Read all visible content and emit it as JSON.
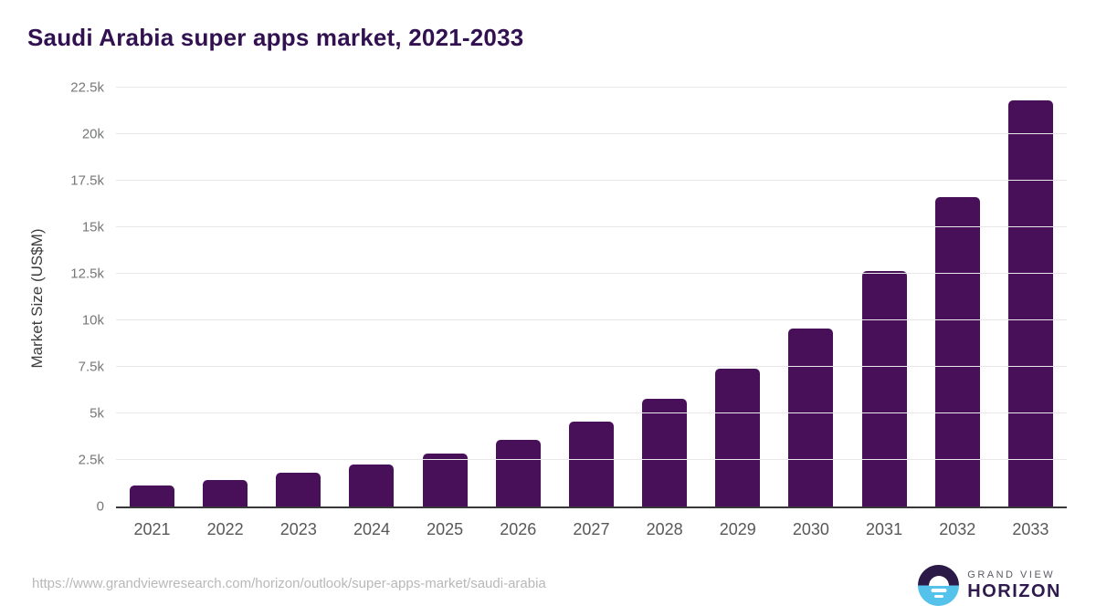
{
  "title": "Saudi Arabia super apps market, 2021-2033",
  "chart_data": {
    "type": "bar",
    "title": "Saudi Arabia super apps market, 2021-2033",
    "categories": [
      "2021",
      "2022",
      "2023",
      "2024",
      "2025",
      "2026",
      "2027",
      "2028",
      "2029",
      "2030",
      "2031",
      "2032",
      "2033"
    ],
    "values": [
      1150,
      1400,
      1800,
      2250,
      2850,
      3600,
      4550,
      5800,
      7400,
      9550,
      12650,
      16600,
      21800
    ],
    "xlabel": "",
    "ylabel": "Market Size (US$M)",
    "ylim": [
      0,
      22500
    ],
    "yticks": [
      {
        "value": 0,
        "label": "0"
      },
      {
        "value": 2500,
        "label": "2.5k"
      },
      {
        "value": 5000,
        "label": "5k"
      },
      {
        "value": 7500,
        "label": "7.5k"
      },
      {
        "value": 10000,
        "label": "10k"
      },
      {
        "value": 12500,
        "label": "12.5k"
      },
      {
        "value": 15000,
        "label": "15k"
      },
      {
        "value": 17500,
        "label": "17.5k"
      },
      {
        "value": 20000,
        "label": "20k"
      },
      {
        "value": 22500,
        "label": "22.5k"
      }
    ],
    "grid": true,
    "legend": false,
    "bar_color": "#471059"
  },
  "colors": {
    "title_text": "#311150",
    "bar": "#471059",
    "gridline": "#e8e8e8",
    "axis_line": "#383838",
    "ytick_text": "#767779",
    "xtick_text": "#58585a",
    "source_text": "#b8b8b8",
    "logo_navy": "#2b1947",
    "logo_blue": "#54c2ea"
  },
  "footer": {
    "source_url": "https://www.grandviewresearch.com/horizon/outlook/super-apps-market/saudi-arabia",
    "logo": {
      "top_text": "GRAND VIEW",
      "bottom_text": "HORIZON"
    }
  }
}
